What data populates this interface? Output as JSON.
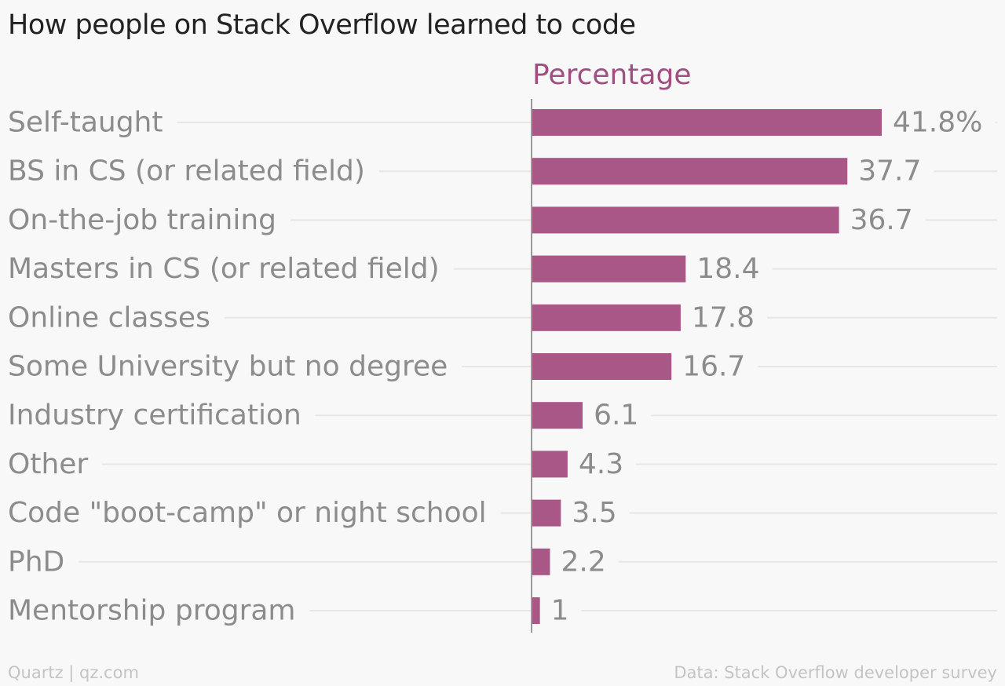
{
  "title": "How people on Stack Overflow learned to code",
  "source_left": "Quartz | qz.com",
  "source_right": "Data: Stack Overflow developer survey",
  "colors": {
    "bar": "#a95787",
    "series_label": "#a14f80",
    "category_text": "#8c8c8c",
    "value_text": "#8c8c8c",
    "gridline": "#e6e6e6",
    "axis": "#9a9a9a"
  },
  "chart_data": {
    "type": "bar",
    "orientation": "horizontal",
    "series_label": "Percentage",
    "categories": [
      "Self-taught",
      "BS in CS (or related field)",
      "On-the-job training",
      "Masters in CS (or related field)",
      "Online classes",
      "Some University but no degree",
      "Industry certification",
      "Other",
      "Code \"boot-camp\" or night school",
      "PhD",
      "Mentorship program"
    ],
    "values": [
      41.8,
      37.7,
      36.7,
      18.4,
      17.8,
      16.7,
      6.1,
      4.3,
      3.5,
      2.2,
      1
    ],
    "value_labels": [
      "41.8%",
      "37.7",
      "36.7",
      "18.4",
      "17.8",
      "16.7",
      "6.1",
      "4.3",
      "3.5",
      "2.2",
      "1"
    ],
    "xlim": [
      0,
      41.8
    ],
    "grid": true
  }
}
